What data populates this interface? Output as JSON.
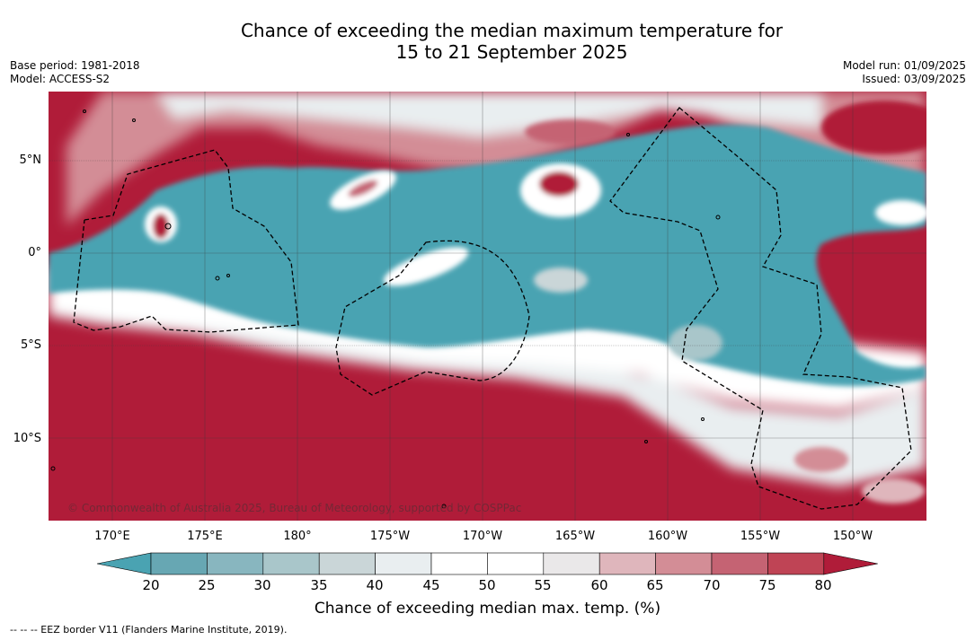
{
  "header": {
    "title_line1": "Chance of exceeding the median maximum temperature for",
    "title_line2": "15 to 21 September 2025",
    "base_period": "Base period: 1981-2018",
    "model": "Model: ACCESS-S2",
    "model_run": "Model run: 01/09/2025",
    "issued": "Issued: 03/09/2025"
  },
  "map": {
    "lat_labels": [
      "5°N",
      "0°",
      "5°S",
      "10°S"
    ],
    "lon_labels": [
      "170°E",
      "175°E",
      "180°",
      "175°W",
      "170°W",
      "165°W",
      "160°W",
      "155°W",
      "150°W"
    ],
    "copyright": "© Commonwealth of Australia 2025, Bureau of Meteorology, supported by COSPPac"
  },
  "colorbar": {
    "title": "Chance of exceeding median max. temp. (%)",
    "ticks": [
      "20",
      "25",
      "30",
      "35",
      "40",
      "45",
      "50",
      "55",
      "60",
      "65",
      "70",
      "75",
      "80"
    ],
    "below_color": "#4aa3b2",
    "above_color": "#b01c39",
    "bin_colors": [
      "#67a7b3",
      "#88b6bf",
      "#a9c6ca",
      "#cad6d8",
      "#e9eef0",
      "#ffffff",
      "#ffffff",
      "#eae8e9",
      "#dfb6bc",
      "#d38d96",
      "#c56373",
      "#bf4455"
    ]
  },
  "legend_note": "--  --  -- EEZ border V11 (Flanders Marine Institute, 2019)."
}
